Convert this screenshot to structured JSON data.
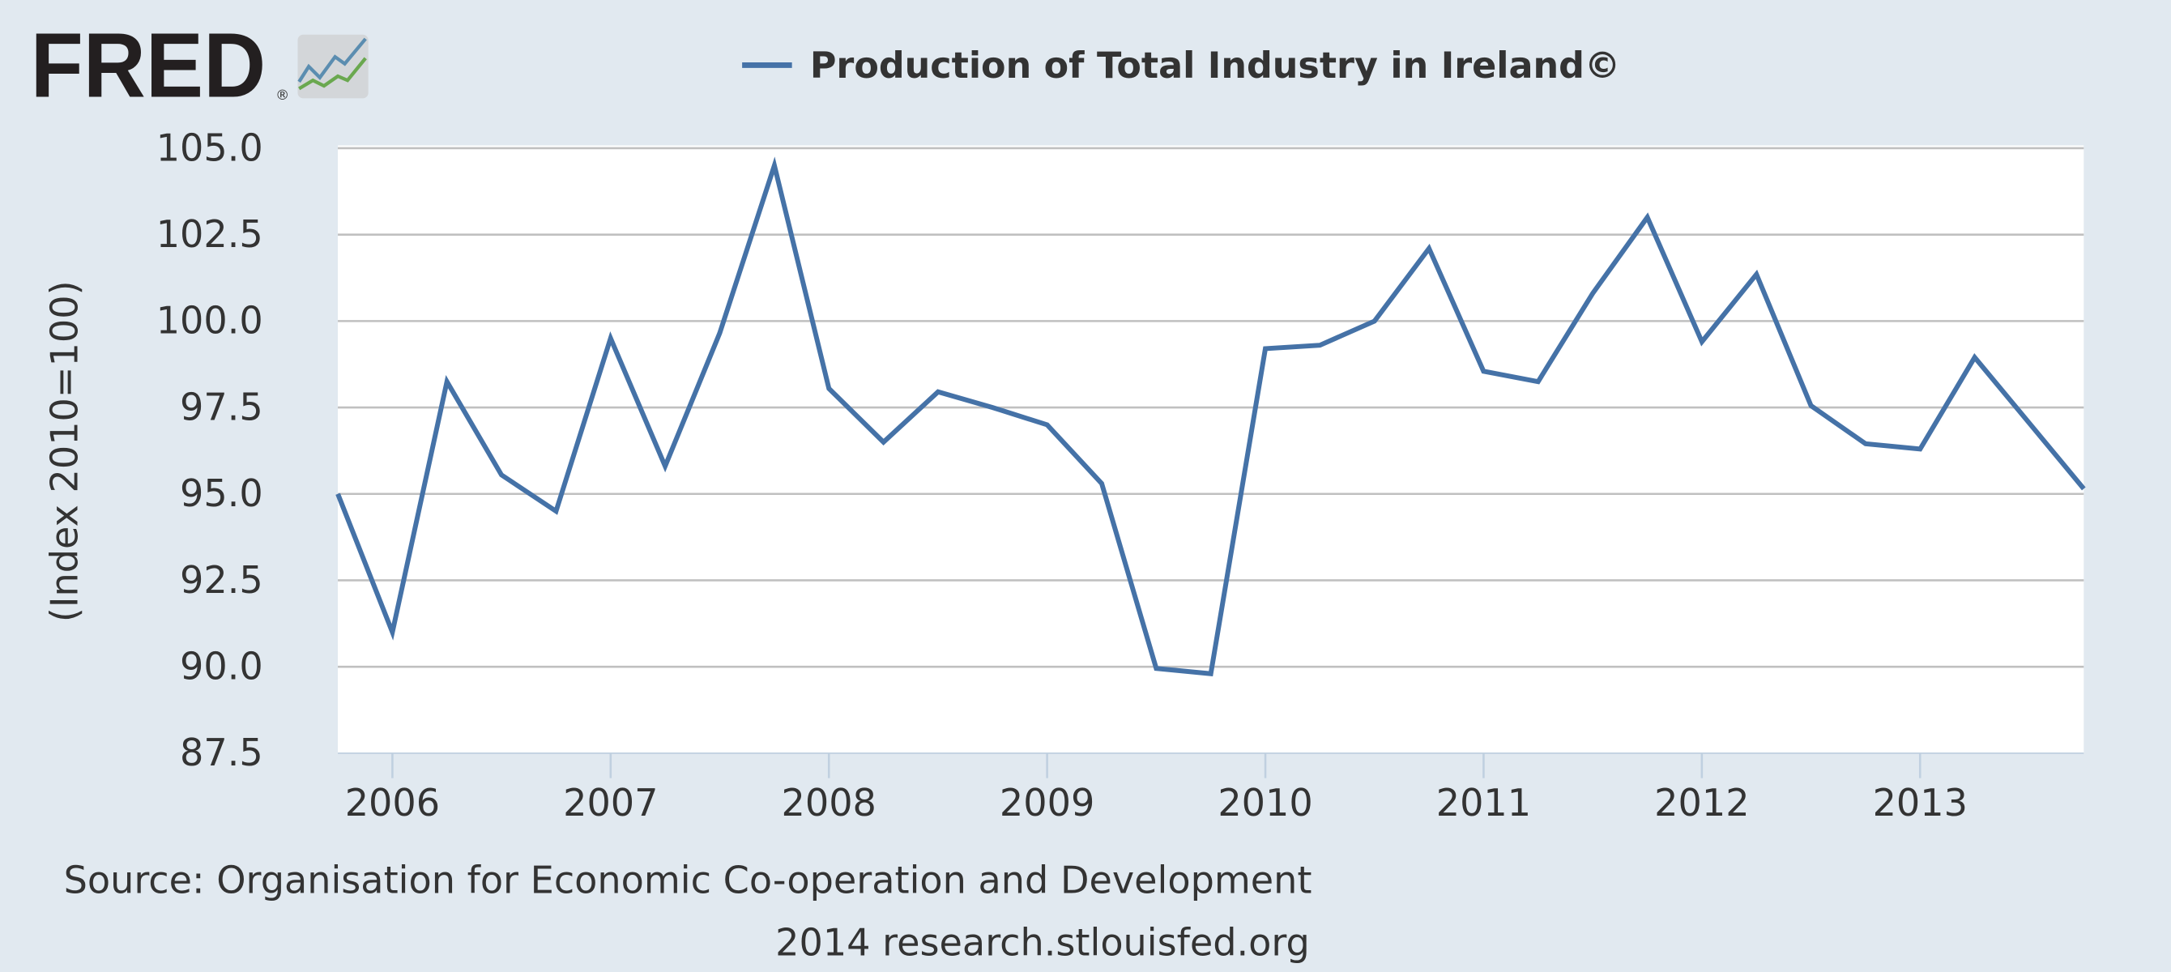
{
  "logo": {
    "text": "FRED",
    "registered": "®"
  },
  "colors": {
    "background": "#e1e9f0",
    "plot_bg": "#ffffff",
    "series": "#4572a7",
    "grid": "#c0c0c0"
  },
  "chart_data": {
    "type": "line",
    "title": "Production of Total Industry in Ireland©",
    "xlabel": "",
    "ylabel": "(Index 2010=100)",
    "ylim": [
      87.5,
      105.0
    ],
    "xlim": [
      2005.75,
      2013.75
    ],
    "yticks": [
      "87.5",
      "90.0",
      "92.5",
      "95.0",
      "97.5",
      "100.0",
      "102.5",
      "105.0"
    ],
    "xticks": [
      "2006",
      "2007",
      "2008",
      "2009",
      "2010",
      "2011",
      "2012",
      "2013"
    ],
    "grid": true,
    "legend": "top-center",
    "series": [
      {
        "name": "Production of Total Industry in Ireland©",
        "x": [
          2005.75,
          2006.0,
          2006.25,
          2006.5,
          2006.75,
          2007.0,
          2007.25,
          2007.5,
          2007.75,
          2008.0,
          2008.25,
          2008.5,
          2008.75,
          2009.0,
          2009.25,
          2009.5,
          2009.75,
          2010.0,
          2010.25,
          2010.5,
          2010.75,
          2011.0,
          2011.25,
          2011.5,
          2011.75,
          2012.0,
          2012.25,
          2012.5,
          2012.75,
          2013.0,
          2013.25,
          2013.5,
          2013.75
        ],
        "values": [
          95.0,
          91.0,
          98.25,
          95.55,
          94.5,
          99.5,
          95.8,
          99.65,
          104.5,
          98.05,
          96.5,
          97.95,
          97.5,
          97.0,
          95.3,
          89.95,
          89.8,
          99.2,
          99.3,
          100.0,
          102.1,
          98.55,
          98.25,
          100.8,
          103.0,
          99.4,
          101.35,
          97.55,
          96.45,
          96.3,
          98.95,
          97.05,
          95.15
        ]
      }
    ]
  },
  "source": "Source: Organisation for Economic Co-operation and Development",
  "credit": "2014 research.stlouisfed.org"
}
